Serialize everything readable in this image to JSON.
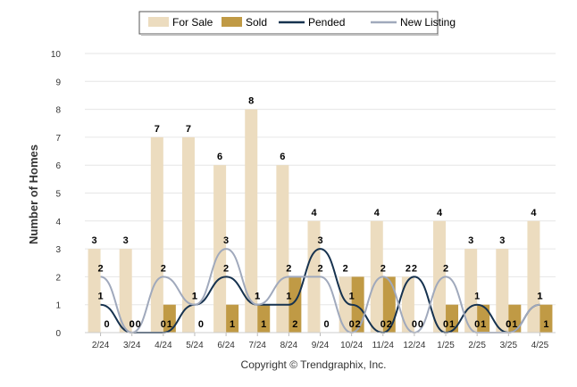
{
  "chart_data": {
    "type": "bar",
    "categories": [
      "2/24",
      "3/24",
      "4/24",
      "5/24",
      "6/24",
      "7/24",
      "8/24",
      "9/24",
      "10/24",
      "11/24",
      "12/24",
      "1/25",
      "2/25",
      "3/25",
      "4/25"
    ],
    "series": [
      {
        "name": "For Sale",
        "kind": "bar",
        "color": "#ecdcbf",
        "values": [
          3,
          3,
          7,
          7,
          6,
          8,
          6,
          4,
          2,
          4,
          2,
          4,
          3,
          3,
          4
        ]
      },
      {
        "name": "Sold",
        "kind": "bar",
        "color": "#c09a45",
        "values": [
          0,
          0,
          1,
          0,
          1,
          1,
          2,
          0,
          2,
          2,
          0,
          1,
          1,
          1,
          1
        ]
      },
      {
        "name": "Pended",
        "kind": "line",
        "color": "#16324f",
        "values": [
          1,
          0,
          0,
          1,
          2,
          1,
          1,
          3,
          1,
          0,
          2,
          0,
          1,
          0,
          1
        ]
      },
      {
        "name": "New Listing",
        "kind": "line",
        "color": "#a0a9bc",
        "values": [
          2,
          0,
          2,
          1,
          3,
          1,
          2,
          2,
          0,
          2,
          0,
          2,
          0,
          0,
          1
        ]
      }
    ],
    "ylabel": "Number of Homes",
    "ylim": [
      0,
      10
    ],
    "yticks": [
      0,
      1,
      2,
      3,
      4,
      5,
      6,
      7,
      8,
      9,
      10
    ],
    "grid": true,
    "legend_position": "top-center",
    "footer": "Copyright © Trendgraphix, Inc."
  }
}
